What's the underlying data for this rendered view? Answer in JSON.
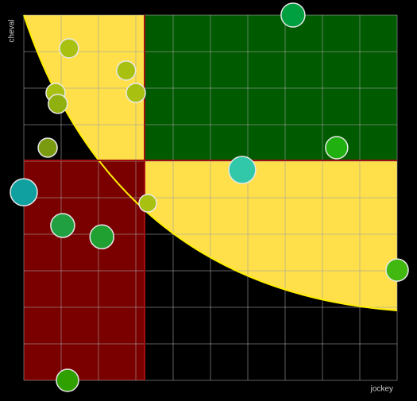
{
  "chart_data": {
    "type": "scatter",
    "x_label": "jockey",
    "y_label": "cheval",
    "xlim": [
      0,
      10
    ],
    "ylim": [
      0,
      10
    ],
    "xticks": [
      0,
      1,
      2,
      3,
      4,
      5,
      6,
      7,
      8,
      9,
      10
    ],
    "yticks": [
      0,
      1,
      2,
      3,
      4,
      5,
      6,
      7,
      8,
      9,
      10
    ],
    "grid": true,
    "series": [
      {
        "x": [
          7.21,
          1.21,
          2.74,
          3.0,
          0.85,
          0.91,
          0.64,
          8.38,
          5.85,
          0,
          3.32,
          1.04,
          2.09,
          10,
          1.17
        ],
        "values": [
          10.0,
          9.09,
          8.48,
          7.87,
          7.87,
          7.57,
          6.37,
          6.37,
          5.76,
          5.15,
          4.85,
          4.24,
          3.93,
          3.02,
          0
        ],
        "sizes": [
          15,
          12,
          12,
          12,
          12,
          12,
          12,
          14,
          17,
          17,
          11,
          15,
          15,
          14,
          14
        ],
        "colors": [
          "#00a040",
          "#a8c010",
          "#a8c010",
          "#a8c010",
          "#a8c010",
          "#90b010",
          "#7a9a10",
          "#20b010",
          "#30c8a8",
          "#10a0a0",
          "#a8c010",
          "#20a040",
          "#20a030",
          "#40b810",
          "#30a000"
        ]
      }
    ]
  }
}
